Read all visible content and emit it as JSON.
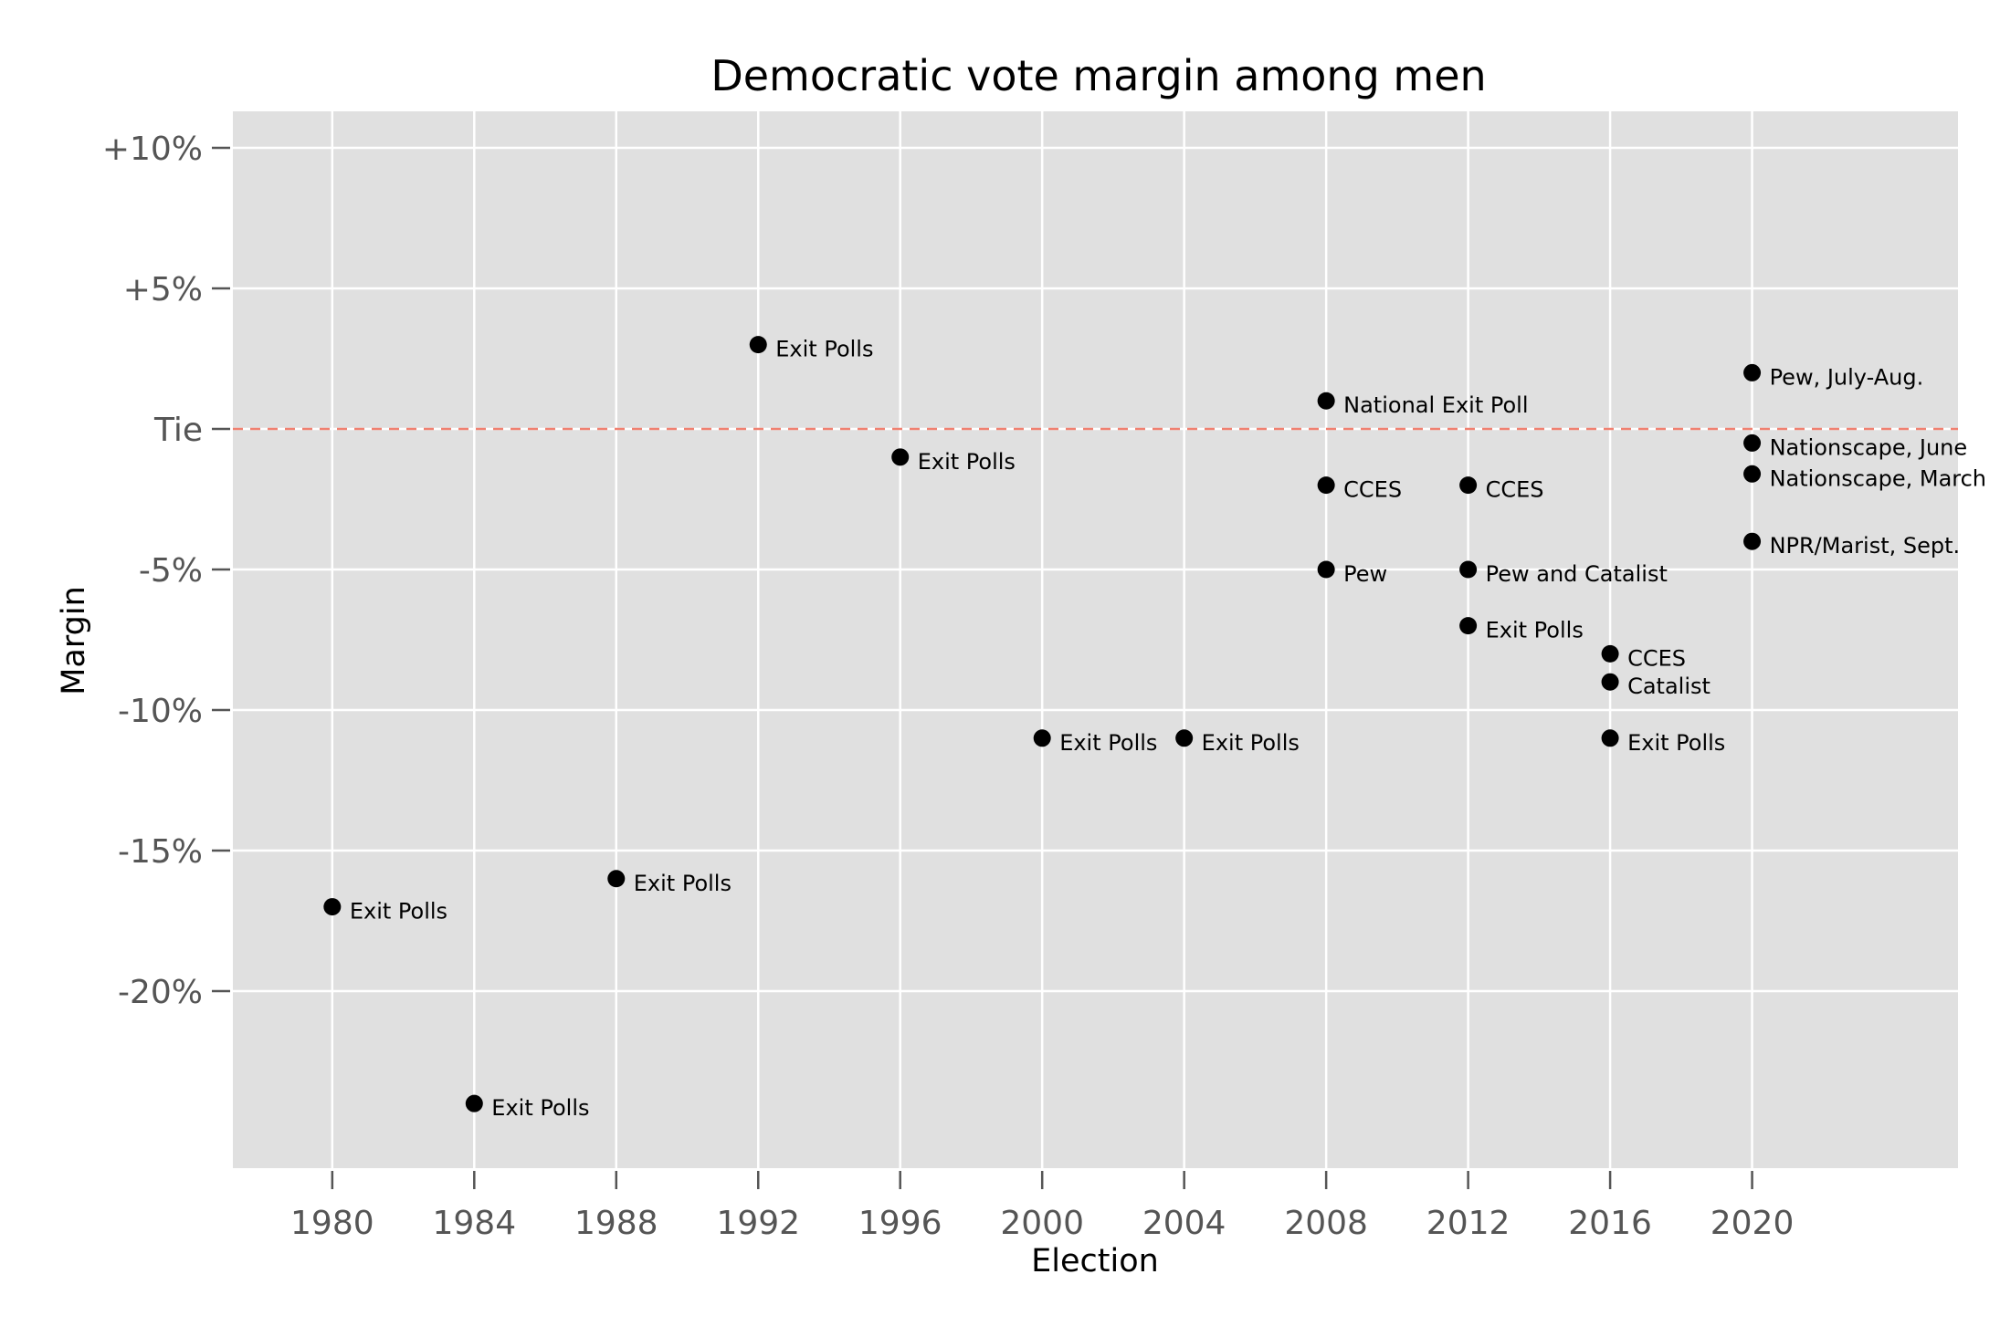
{
  "chart_data": {
    "type": "scatter",
    "title": "Democratic vote margin among men",
    "xlabel": "Election",
    "ylabel": "Margin",
    "xlim": [
      1977.2,
      2025.8
    ],
    "ylim": [
      -26.3,
      11.3
    ],
    "x_ticks": [
      1980,
      1984,
      1988,
      1992,
      1996,
      2000,
      2004,
      2008,
      2012,
      2016,
      2020
    ],
    "x_tick_labels": [
      "1980",
      "1984",
      "1988",
      "1992",
      "1996",
      "2000",
      "2004",
      "2008",
      "2012",
      "2016",
      "2020"
    ],
    "y_ticks": [
      10,
      5,
      0,
      -5,
      -10,
      -15,
      -20
    ],
    "y_tick_labels": [
      "+10%",
      "+5%",
      "Tie",
      "-5%",
      "-10%",
      "-15%",
      "-20%"
    ],
    "grid": true,
    "reference_line": {
      "y": 0,
      "style": "dashed",
      "color": "#f08070"
    },
    "colors": {
      "panel": "#e0e0e0",
      "grid": "#ffffff",
      "point": "#000000",
      "ticks": "#555555"
    },
    "points": [
      {
        "x": 1980,
        "y": -17,
        "label": "Exit Polls"
      },
      {
        "x": 1984,
        "y": -24,
        "label": "Exit Polls"
      },
      {
        "x": 1988,
        "y": -16,
        "label": "Exit Polls"
      },
      {
        "x": 1992,
        "y": 3,
        "label": "Exit Polls"
      },
      {
        "x": 1996,
        "y": -1,
        "label": "Exit Polls"
      },
      {
        "x": 2000,
        "y": -11,
        "label": "Exit Polls"
      },
      {
        "x": 2004,
        "y": -11,
        "label": "Exit Polls"
      },
      {
        "x": 2008,
        "y": 1,
        "label": "National Exit Poll"
      },
      {
        "x": 2008,
        "y": -2,
        "label": "CCES"
      },
      {
        "x": 2008,
        "y": -5,
        "label": "Pew"
      },
      {
        "x": 2012,
        "y": -2,
        "label": "CCES"
      },
      {
        "x": 2012,
        "y": -5,
        "label": "Pew and Catalist"
      },
      {
        "x": 2012,
        "y": -7,
        "label": "Exit Polls"
      },
      {
        "x": 2016,
        "y": -8,
        "label": "CCES"
      },
      {
        "x": 2016,
        "y": -9,
        "label": "Catalist"
      },
      {
        "x": 2016,
        "y": -11,
        "label": "Exit Polls"
      },
      {
        "x": 2020,
        "y": 2,
        "label": "Pew, July-Aug."
      },
      {
        "x": 2020,
        "y": -0.5,
        "label": "Nationscape, June"
      },
      {
        "x": 2020,
        "y": -1.6,
        "label": "Nationscape, March"
      },
      {
        "x": 2020,
        "y": -4,
        "label": "NPR/Marist, Sept."
      }
    ]
  }
}
